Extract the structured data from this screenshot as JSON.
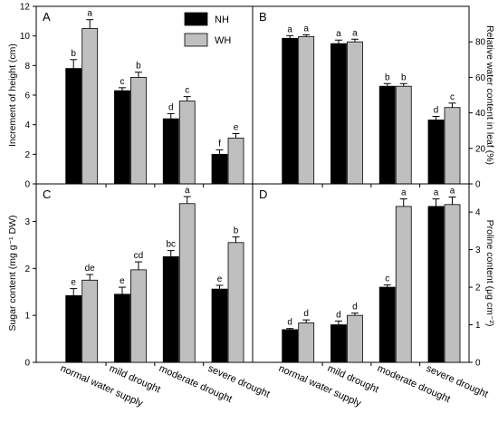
{
  "legend": [
    {
      "label": "NH",
      "color": "#000000"
    },
    {
      "label": "WH",
      "color": "#bfbfbf"
    }
  ],
  "categories": [
    "normal water supply",
    "mild drought",
    "moderate drought",
    "severe drought"
  ],
  "chart_data": [
    {
      "type": "bar",
      "panel": "A",
      "ylabel": "Increment of height (cm)",
      "ylim": [
        0,
        12
      ],
      "yticks": [
        0,
        2,
        4,
        6,
        8,
        10,
        12
      ],
      "axis_side": "left",
      "categories": [
        "normal water supply",
        "mild drought",
        "moderate drought",
        "severe drought"
      ],
      "series": [
        {
          "name": "NH",
          "values": [
            7.8,
            6.3,
            4.4,
            2.0
          ],
          "errors": [
            0.6,
            0.2,
            0.35,
            0.3
          ],
          "letters": [
            "b",
            "c",
            "d",
            "f"
          ]
        },
        {
          "name": "WH",
          "values": [
            10.5,
            7.2,
            5.6,
            3.1
          ],
          "errors": [
            0.6,
            0.35,
            0.3,
            0.3
          ],
          "letters": [
            "a",
            "b",
            "c",
            "e"
          ]
        }
      ]
    },
    {
      "type": "bar",
      "panel": "B",
      "ylabel": "Relative water content in leaf (%)",
      "ylim": [
        0,
        100
      ],
      "yticks": [
        0,
        20,
        40,
        60,
        80
      ],
      "axis_side": "right",
      "categories": [
        "normal water supply",
        "mild drought",
        "moderate drought",
        "severe drought"
      ],
      "series": [
        {
          "name": "NH",
          "values": [
            82,
            79,
            55,
            36
          ],
          "errors": [
            1.5,
            2,
            1.5,
            2
          ],
          "letters": [
            "a",
            "a",
            "b",
            "d"
          ]
        },
        {
          "name": "WH",
          "values": [
            83,
            80,
            55,
            43
          ],
          "errors": [
            1,
            1.5,
            1.5,
            2.5
          ],
          "letters": [
            "a",
            "a",
            "b",
            "c"
          ]
        }
      ]
    },
    {
      "type": "bar",
      "panel": "C",
      "ylabel": "Sugar content (mg g⁻¹ DW)",
      "ylim": [
        0,
        3.8
      ],
      "yticks": [
        0,
        1,
        2,
        3
      ],
      "axis_side": "left",
      "categories": [
        "normal water supply",
        "mild drought",
        "moderate drought",
        "severe drought"
      ],
      "series": [
        {
          "name": "NH",
          "values": [
            1.42,
            1.45,
            2.25,
            1.56
          ],
          "errors": [
            0.15,
            0.15,
            0.13,
            0.08
          ],
          "letters": [
            "e",
            "e",
            "bc",
            "e"
          ]
        },
        {
          "name": "WH",
          "values": [
            1.75,
            1.97,
            3.38,
            2.55
          ],
          "errors": [
            0.12,
            0.17,
            0.15,
            0.12
          ],
          "letters": [
            "de",
            "cd",
            "a",
            "b"
          ]
        }
      ]
    },
    {
      "type": "bar",
      "panel": "D",
      "ylabel": "Proline content (μg cm⁻²)",
      "ylim": [
        0,
        4.75
      ],
      "yticks": [
        0,
        1,
        2,
        3,
        4
      ],
      "axis_side": "right",
      "categories": [
        "normal water supply",
        "mild drought",
        "moderate drought",
        "severe drought"
      ],
      "series": [
        {
          "name": "NH",
          "values": [
            0.87,
            1.0,
            2.0,
            4.15
          ],
          "errors": [
            0.03,
            0.1,
            0.06,
            0.2
          ],
          "letters": [
            "d",
            "d",
            "c",
            "a"
          ]
        },
        {
          "name": "WH",
          "values": [
            1.05,
            1.25,
            4.15,
            4.2
          ],
          "errors": [
            0.08,
            0.06,
            0.2,
            0.2
          ],
          "letters": [
            "d",
            "d",
            "a",
            "a"
          ]
        }
      ]
    }
  ]
}
